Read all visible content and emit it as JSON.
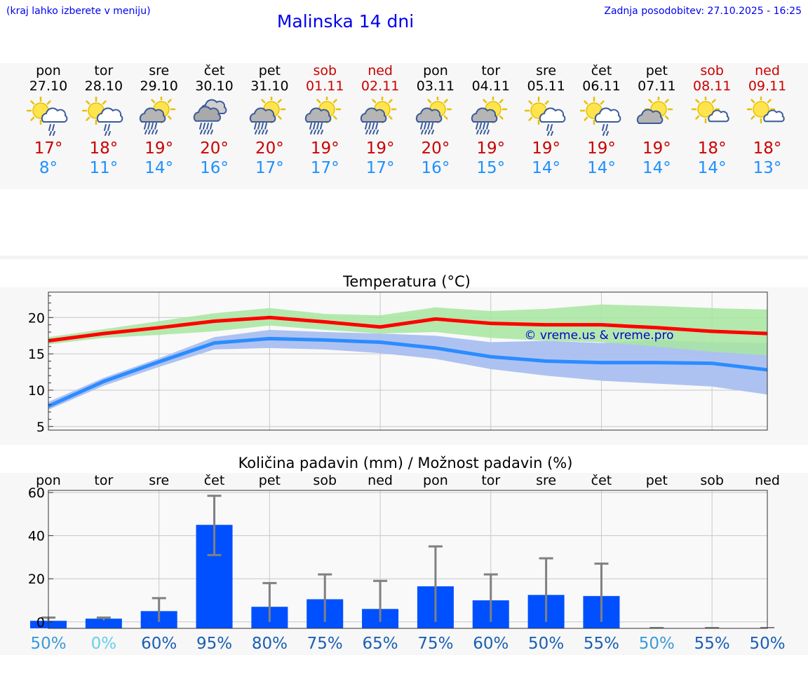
{
  "header": {
    "note": "(kraj lahko izberete v meniju)",
    "title": "Malinska 14 dni",
    "update": "Zadnja posodobitev: 27.10.2025 - 16:25"
  },
  "days": [
    {
      "name": "pon",
      "date": "27.10",
      "weekend": false,
      "icon": "sun-cloud-light-rain-icon",
      "tmax": "17°",
      "tmin": "8°"
    },
    {
      "name": "tor",
      "date": "28.10",
      "weekend": false,
      "icon": "sun-cloud-light-rain-icon",
      "tmax": "18°",
      "tmin": "11°"
    },
    {
      "name": "sre",
      "date": "29.10",
      "weekend": false,
      "icon": "sun-cloud-rain-icon",
      "tmax": "19°",
      "tmin": "14°"
    },
    {
      "name": "čet",
      "date": "30.10",
      "weekend": false,
      "icon": "cloud-rain-icon",
      "tmax": "20°",
      "tmin": "16°"
    },
    {
      "name": "pet",
      "date": "31.10",
      "weekend": false,
      "icon": "sun-cloud-rain-icon",
      "tmax": "20°",
      "tmin": "17°"
    },
    {
      "name": "sob",
      "date": "01.11",
      "weekend": true,
      "icon": "sun-cloud-rain-icon",
      "tmax": "19°",
      "tmin": "17°"
    },
    {
      "name": "ned",
      "date": "02.11",
      "weekend": true,
      "icon": "sun-cloud-rain-icon",
      "tmax": "19°",
      "tmin": "17°"
    },
    {
      "name": "pon",
      "date": "03.11",
      "weekend": false,
      "icon": "sun-cloud-rain-icon",
      "tmax": "20°",
      "tmin": "16°"
    },
    {
      "name": "tor",
      "date": "04.11",
      "weekend": false,
      "icon": "sun-cloud-rain-icon",
      "tmax": "19°",
      "tmin": "15°"
    },
    {
      "name": "sre",
      "date": "05.11",
      "weekend": false,
      "icon": "sun-cloud-light-rain-icon",
      "tmax": "19°",
      "tmin": "14°"
    },
    {
      "name": "čet",
      "date": "06.11",
      "weekend": false,
      "icon": "sun-cloud-light-rain-icon",
      "tmax": "19°",
      "tmin": "14°"
    },
    {
      "name": "pet",
      "date": "07.11",
      "weekend": false,
      "icon": "sun-cloud-icon",
      "tmax": "19°",
      "tmin": "14°"
    },
    {
      "name": "sob",
      "date": "08.11",
      "weekend": true,
      "icon": "sun-small-cloud-icon",
      "tmax": "18°",
      "tmin": "14°"
    },
    {
      "name": "ned",
      "date": "09.11",
      "weekend": true,
      "icon": "sun-small-cloud-icon",
      "tmax": "18°",
      "tmin": "13°"
    }
  ],
  "colors": {
    "max_line": "#ff0000",
    "max_band": "#a8e6a0",
    "min_line": "#2b8cff",
    "min_band": "#aabff0",
    "overlap_band": "#7cc4a8",
    "bar": "#0050ff",
    "error": "#808080",
    "weekend": "#cc0000",
    "prob_dark": "#1a5fb4",
    "prob_mid": "#3a9ad9",
    "prob_light": "#66d0e8"
  },
  "chart_data": [
    {
      "type": "line",
      "title": "Temperatura (°C)",
      "watermark": "© vreme.us & vreme.pro",
      "x": [
        0,
        1,
        2,
        3,
        4,
        5,
        6,
        7,
        8,
        9,
        10,
        11,
        12,
        13
      ],
      "ylim": [
        4.5,
        23.5
      ],
      "yticks": [
        5,
        10,
        15,
        20
      ],
      "series": [
        {
          "name": "max",
          "values": [
            16.8,
            17.8,
            18.6,
            19.5,
            20.0,
            19.4,
            18.7,
            19.8,
            19.2,
            19.0,
            19.0,
            18.6,
            18.1,
            17.8
          ],
          "band_low": [
            16.3,
            17.2,
            17.6,
            18.1,
            18.9,
            18.3,
            17.8,
            18.0,
            17.2,
            16.8,
            16.6,
            16.0,
            15.3,
            14.8
          ],
          "band_high": [
            17.3,
            18.4,
            19.5,
            20.6,
            21.3,
            20.5,
            20.3,
            21.4,
            20.9,
            21.2,
            21.8,
            21.6,
            21.3,
            21.1
          ]
        },
        {
          "name": "min",
          "values": [
            7.8,
            11.2,
            13.9,
            16.5,
            17.1,
            16.9,
            16.6,
            15.8,
            14.6,
            14.0,
            13.8,
            13.8,
            13.7,
            12.8
          ],
          "band_low": [
            7.3,
            10.6,
            13.2,
            15.6,
            15.8,
            15.6,
            15.1,
            14.3,
            12.9,
            12.0,
            11.3,
            10.9,
            10.5,
            9.4
          ],
          "band_high": [
            8.4,
            11.7,
            14.4,
            17.3,
            18.3,
            18.0,
            17.8,
            17.5,
            16.6,
            16.8,
            16.5,
            16.9,
            16.6,
            16.5
          ]
        }
      ]
    },
    {
      "type": "bar",
      "title": "Količina padavin (mm) / Možnost padavin (%)",
      "categories": [
        "pon",
        "tor",
        "sre",
        "čet",
        "pet",
        "sob",
        "ned",
        "pon",
        "tor",
        "sre",
        "čet",
        "pet",
        "sob",
        "ned"
      ],
      "ylim": [
        -3,
        61
      ],
      "yticks": [
        0,
        20,
        40,
        60
      ],
      "values": [
        0.5,
        1.5,
        5,
        45,
        7,
        10.5,
        6,
        16.5,
        10,
        12.5,
        12,
        0,
        0,
        0
      ],
      "error_low": [
        0.7,
        0.7,
        0,
        31,
        0,
        0,
        0,
        0,
        0,
        0,
        0,
        0,
        0,
        0
      ],
      "error_high": [
        2,
        2,
        11,
        58.5,
        18,
        22,
        19,
        35,
        22,
        29.5,
        27,
        0,
        0,
        0
      ],
      "probability": [
        "50%",
        "0%",
        "60%",
        "95%",
        "80%",
        "75%",
        "65%",
        "75%",
        "60%",
        "50%",
        "55%",
        "50%",
        "55%",
        "50%"
      ],
      "prob_tone": [
        "mid",
        "light",
        "dark",
        "dark",
        "dark",
        "dark",
        "dark",
        "dark",
        "dark",
        "dark",
        "dark",
        "mid",
        "dark",
        "dark"
      ]
    }
  ]
}
